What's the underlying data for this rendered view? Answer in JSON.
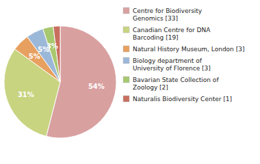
{
  "chart_data": {
    "type": "pie",
    "categories": [
      "Centre for Biodiversity\nGenomics [33]",
      "Canadian Centre for DNA\nBarcoding [19]",
      "Natural History Museum, London [3]",
      "Biology department of\nUniversity of Florence [3]",
      "Bavarian State Collection of\nZoology [2]",
      "Naturalis Biodiversity Center [1]"
    ],
    "values": [
      54,
      31,
      5,
      5,
      3,
      2
    ],
    "value_labels": [
      "54%",
      "31%",
      "5%",
      "5%",
      "3%",
      null
    ],
    "colors": [
      "#d9a0a0",
      "#c8d480",
      "#e8a060",
      "#9cb8d8",
      "#a8c870",
      "#c87060"
    ],
    "data_labels": true,
    "legend": "upper right"
  }
}
